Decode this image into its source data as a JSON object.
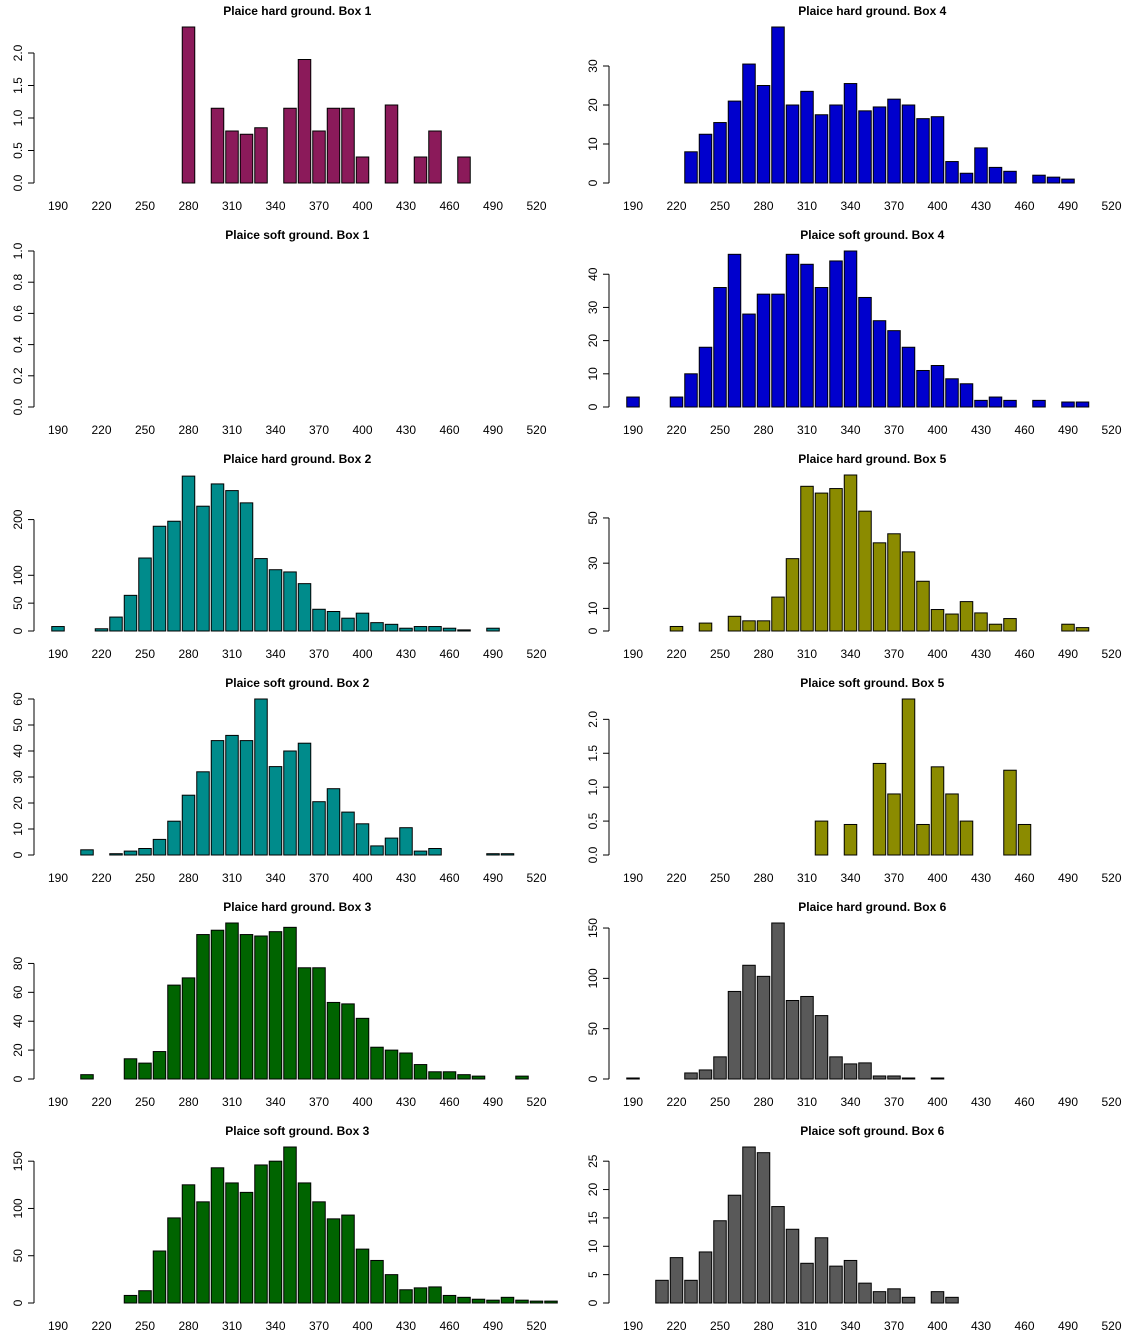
{
  "chart_data": [
    {
      "type": "bar",
      "title": "Plaice hard ground. Box 1",
      "color": "#8B1A5A",
      "xticks": [
        190,
        220,
        250,
        280,
        310,
        340,
        370,
        400,
        430,
        460,
        490,
        520
      ],
      "yticks": [
        0,
        0.5,
        1,
        1.5,
        2
      ],
      "ytick_labels": [
        "0.0",
        "0.5",
        "1.0",
        "1.5",
        "2.0"
      ],
      "ylim": [
        0,
        2.4
      ],
      "bars": [
        [
          280,
          2.4
        ],
        [
          300,
          1.15
        ],
        [
          310,
          0.8
        ],
        [
          320,
          0.75
        ],
        [
          330,
          0.85
        ],
        [
          350,
          1.15
        ],
        [
          360,
          1.9
        ],
        [
          370,
          0.8
        ],
        [
          380,
          1.15
        ],
        [
          390,
          1.15
        ],
        [
          400,
          0.4
        ],
        [
          420,
          1.2
        ],
        [
          440,
          0.4
        ],
        [
          450,
          0.8
        ],
        [
          470,
          0.4
        ]
      ]
    },
    {
      "type": "bar",
      "title": "Plaice hard ground. Box 4",
      "color": "#0000CD",
      "xticks": [
        190,
        220,
        250,
        280,
        310,
        340,
        370,
        400,
        430,
        460,
        490,
        520
      ],
      "yticks": [
        0,
        10,
        20,
        30
      ],
      "ytick_labels": [
        "0",
        "10",
        "20",
        "30"
      ],
      "ylim": [
        0,
        40
      ],
      "bars": [
        [
          230,
          8
        ],
        [
          240,
          12.5
        ],
        [
          250,
          15.5
        ],
        [
          260,
          21
        ],
        [
          270,
          30.5
        ],
        [
          280,
          25
        ],
        [
          290,
          40
        ],
        [
          300,
          20
        ],
        [
          310,
          23.5
        ],
        [
          320,
          17.5
        ],
        [
          330,
          20
        ],
        [
          340,
          25.5
        ],
        [
          350,
          18.5
        ],
        [
          360,
          19.5
        ],
        [
          370,
          21.5
        ],
        [
          380,
          20
        ],
        [
          390,
          16.5
        ],
        [
          400,
          17
        ],
        [
          410,
          5.5
        ],
        [
          420,
          2.5
        ],
        [
          430,
          9
        ],
        [
          440,
          4
        ],
        [
          450,
          3
        ],
        [
          470,
          2
        ],
        [
          480,
          1.5
        ],
        [
          490,
          1
        ]
      ]
    },
    {
      "type": "bar",
      "title": "Plaice soft ground. Box 1",
      "color": "#8B1A5A",
      "xticks": [
        190,
        220,
        250,
        280,
        310,
        340,
        370,
        400,
        430,
        460,
        490,
        520
      ],
      "yticks": [
        0,
        0.2,
        0.4,
        0.6,
        0.8,
        1
      ],
      "ytick_labels": [
        "0.0",
        "0.2",
        "0.4",
        "0.6",
        "0.8",
        "1.0"
      ],
      "ylim": [
        0,
        1
      ],
      "bars": []
    },
    {
      "type": "bar",
      "title": "Plaice soft ground. Box 4",
      "color": "#0000CD",
      "xticks": [
        190,
        220,
        250,
        280,
        310,
        340,
        370,
        400,
        430,
        460,
        490,
        520
      ],
      "yticks": [
        0,
        10,
        20,
        30,
        40
      ],
      "ytick_labels": [
        "0",
        "10",
        "20",
        "30",
        "40"
      ],
      "ylim": [
        0,
        47
      ],
      "bars": [
        [
          190,
          3
        ],
        [
          220,
          3
        ],
        [
          230,
          10
        ],
        [
          240,
          18
        ],
        [
          250,
          36
        ],
        [
          260,
          46
        ],
        [
          270,
          28
        ],
        [
          280,
          34
        ],
        [
          290,
          34
        ],
        [
          300,
          46
        ],
        [
          310,
          43
        ],
        [
          320,
          36
        ],
        [
          330,
          44
        ],
        [
          340,
          47
        ],
        [
          350,
          33
        ],
        [
          360,
          26
        ],
        [
          370,
          23
        ],
        [
          380,
          18
        ],
        [
          390,
          11
        ],
        [
          400,
          12.5
        ],
        [
          410,
          8.5
        ],
        [
          420,
          7
        ],
        [
          430,
          2
        ],
        [
          440,
          3
        ],
        [
          450,
          2
        ],
        [
          470,
          2
        ],
        [
          490,
          1.5
        ],
        [
          500,
          1.5
        ]
      ]
    },
    {
      "type": "bar",
      "title": "Plaice hard ground. Box 2",
      "color": "#008B8B",
      "xticks": [
        190,
        220,
        250,
        280,
        310,
        340,
        370,
        400,
        430,
        460,
        490,
        520
      ],
      "yticks": [
        0,
        50,
        100,
        200
      ],
      "ytick_labels": [
        "0",
        "50",
        "100",
        "200"
      ],
      "ylim": [
        0,
        280
      ],
      "bars": [
        [
          190,
          8
        ],
        [
          220,
          4
        ],
        [
          230,
          25
        ],
        [
          240,
          64
        ],
        [
          250,
          131
        ],
        [
          260,
          188
        ],
        [
          270,
          197
        ],
        [
          280,
          278
        ],
        [
          290,
          224
        ],
        [
          300,
          264
        ],
        [
          310,
          252
        ],
        [
          320,
          230
        ],
        [
          330,
          130
        ],
        [
          340,
          110
        ],
        [
          350,
          106
        ],
        [
          360,
          85
        ],
        [
          370,
          39
        ],
        [
          380,
          35
        ],
        [
          390,
          23
        ],
        [
          400,
          32
        ],
        [
          410,
          15
        ],
        [
          420,
          12
        ],
        [
          430,
          5
        ],
        [
          440,
          8
        ],
        [
          450,
          8
        ],
        [
          460,
          5
        ],
        [
          470,
          2
        ],
        [
          490,
          5
        ]
      ]
    },
    {
      "type": "bar",
      "title": "Plaice hard ground. Box 5",
      "color": "#8B8B00",
      "xticks": [
        190,
        220,
        250,
        280,
        310,
        340,
        370,
        400,
        430,
        460,
        490,
        520
      ],
      "yticks": [
        0,
        10,
        30,
        50
      ],
      "ytick_labels": [
        "0",
        "10",
        "30",
        "50"
      ],
      "ylim": [
        0,
        69
      ],
      "bars": [
        [
          220,
          2
        ],
        [
          240,
          3.5
        ],
        [
          260,
          6.5
        ],
        [
          270,
          4.5
        ],
        [
          280,
          4.5
        ],
        [
          290,
          15
        ],
        [
          300,
          32
        ],
        [
          310,
          64
        ],
        [
          320,
          61
        ],
        [
          330,
          63
        ],
        [
          340,
          69
        ],
        [
          350,
          53
        ],
        [
          360,
          39
        ],
        [
          370,
          43
        ],
        [
          380,
          35
        ],
        [
          390,
          22
        ],
        [
          400,
          9.5
        ],
        [
          410,
          7.5
        ],
        [
          420,
          13
        ],
        [
          430,
          8
        ],
        [
          440,
          3
        ],
        [
          450,
          5.5
        ],
        [
          490,
          3
        ],
        [
          500,
          1.5
        ]
      ]
    },
    {
      "type": "bar",
      "title": "Plaice soft ground. Box 2",
      "color": "#008B8B",
      "xticks": [
        190,
        220,
        250,
        280,
        310,
        340,
        370,
        400,
        430,
        460,
        490,
        520
      ],
      "yticks": [
        0,
        10,
        20,
        30,
        40,
        50,
        60
      ],
      "ytick_labels": [
        "0",
        "10",
        "20",
        "30",
        "40",
        "50",
        "60"
      ],
      "ylim": [
        0,
        60
      ],
      "bars": [
        [
          210,
          2
        ],
        [
          230,
          0.5
        ],
        [
          240,
          1.5
        ],
        [
          250,
          2.5
        ],
        [
          260,
          6
        ],
        [
          270,
          13
        ],
        [
          280,
          23
        ],
        [
          290,
          32
        ],
        [
          300,
          44
        ],
        [
          310,
          46
        ],
        [
          320,
          44
        ],
        [
          330,
          60
        ],
        [
          340,
          34
        ],
        [
          350,
          40
        ],
        [
          360,
          43
        ],
        [
          370,
          20.5
        ],
        [
          380,
          25.5
        ],
        [
          390,
          16.5
        ],
        [
          400,
          12
        ],
        [
          410,
          3.5
        ],
        [
          420,
          6.5
        ],
        [
          430,
          10.5
        ],
        [
          440,
          1.5
        ],
        [
          450,
          2.5
        ],
        [
          490,
          0.5
        ],
        [
          500,
          0.5
        ]
      ]
    },
    {
      "type": "bar",
      "title": "Plaice soft ground. Box 5",
      "color": "#8B8B00",
      "xticks": [
        190,
        220,
        250,
        280,
        310,
        340,
        370,
        400,
        430,
        460,
        490,
        520
      ],
      "yticks": [
        0,
        0.5,
        1,
        1.5,
        2
      ],
      "ytick_labels": [
        "0.0",
        "0.5",
        "1.0",
        "1.5",
        "2.0"
      ],
      "ylim": [
        0,
        2.3
      ],
      "bars": [
        [
          320,
          0.5
        ],
        [
          340,
          0.45
        ],
        [
          360,
          1.35
        ],
        [
          370,
          0.9
        ],
        [
          380,
          2.3
        ],
        [
          390,
          0.45
        ],
        [
          400,
          1.3
        ],
        [
          410,
          0.9
        ],
        [
          420,
          0.5
        ],
        [
          450,
          1.25
        ],
        [
          460,
          0.45
        ]
      ]
    },
    {
      "type": "bar",
      "title": "Plaice hard ground. Box 3",
      "color": "#006400",
      "xticks": [
        190,
        220,
        250,
        280,
        310,
        340,
        370,
        400,
        430,
        460,
        490,
        520
      ],
      "yticks": [
        0,
        20,
        40,
        60,
        80
      ],
      "ytick_labels": [
        "0",
        "20",
        "40",
        "60",
        "80"
      ],
      "ylim": [
        0,
        108
      ],
      "bars": [
        [
          210,
          3
        ],
        [
          240,
          14
        ],
        [
          250,
          11
        ],
        [
          260,
          19
        ],
        [
          270,
          65
        ],
        [
          280,
          70
        ],
        [
          290,
          100
        ],
        [
          300,
          103
        ],
        [
          310,
          108
        ],
        [
          320,
          100
        ],
        [
          330,
          99
        ],
        [
          340,
          102
        ],
        [
          350,
          105
        ],
        [
          360,
          77
        ],
        [
          370,
          77
        ],
        [
          380,
          53
        ],
        [
          390,
          52
        ],
        [
          400,
          42
        ],
        [
          410,
          22
        ],
        [
          420,
          20
        ],
        [
          430,
          18
        ],
        [
          440,
          10
        ],
        [
          450,
          5
        ],
        [
          460,
          5
        ],
        [
          470,
          3
        ],
        [
          480,
          2
        ],
        [
          510,
          2
        ]
      ]
    },
    {
      "type": "bar",
      "title": "Plaice hard ground. Box 6",
      "color": "#595959",
      "xticks": [
        190,
        220,
        250,
        280,
        310,
        340,
        370,
        400,
        430,
        460,
        490,
        520
      ],
      "yticks": [
        0,
        50,
        100,
        150
      ],
      "ytick_labels": [
        "0",
        "50",
        "100",
        "150"
      ],
      "ylim": [
        0,
        155
      ],
      "bars": [
        [
          190,
          1
        ],
        [
          230,
          6
        ],
        [
          240,
          9
        ],
        [
          250,
          22
        ],
        [
          260,
          87
        ],
        [
          270,
          113
        ],
        [
          280,
          102
        ],
        [
          290,
          155
        ],
        [
          300,
          78
        ],
        [
          310,
          82
        ],
        [
          320,
          63
        ],
        [
          330,
          22
        ],
        [
          340,
          15
        ],
        [
          350,
          16
        ],
        [
          360,
          3
        ],
        [
          370,
          3
        ],
        [
          380,
          1
        ],
        [
          400,
          1
        ]
      ]
    },
    {
      "type": "bar",
      "title": "Plaice soft ground. Box 3",
      "color": "#006400",
      "xticks": [
        190,
        220,
        250,
        280,
        310,
        340,
        370,
        400,
        430,
        460,
        490,
        520
      ],
      "yticks": [
        0,
        50,
        100,
        150
      ],
      "ytick_labels": [
        "0",
        "50",
        "100",
        "150"
      ],
      "ylim": [
        0,
        165
      ],
      "bars": [
        [
          240,
          8
        ],
        [
          250,
          13
        ],
        [
          260,
          55
        ],
        [
          270,
          90
        ],
        [
          280,
          125
        ],
        [
          290,
          107
        ],
        [
          300,
          143
        ],
        [
          310,
          127
        ],
        [
          320,
          117
        ],
        [
          330,
          146
        ],
        [
          340,
          150
        ],
        [
          350,
          165
        ],
        [
          360,
          127
        ],
        [
          370,
          107
        ],
        [
          380,
          89
        ],
        [
          390,
          93
        ],
        [
          400,
          57
        ],
        [
          410,
          45
        ],
        [
          420,
          30
        ],
        [
          430,
          14
        ],
        [
          440,
          16
        ],
        [
          450,
          17
        ],
        [
          460,
          8
        ],
        [
          470,
          6
        ],
        [
          480,
          4
        ],
        [
          490,
          3
        ],
        [
          500,
          6
        ],
        [
          510,
          3
        ],
        [
          520,
          2
        ],
        [
          530,
          2
        ]
      ]
    },
    {
      "type": "bar",
      "title": "Plaice soft ground. Box 6",
      "color": "#595959",
      "xticks": [
        190,
        220,
        250,
        280,
        310,
        340,
        370,
        400,
        430,
        460,
        490,
        520
      ],
      "yticks": [
        0,
        5,
        10,
        15,
        20,
        25
      ],
      "ytick_labels": [
        "0",
        "5",
        "10",
        "15",
        "20",
        "25"
      ],
      "ylim": [
        0,
        27.5
      ],
      "bars": [
        [
          210,
          4
        ],
        [
          220,
          8
        ],
        [
          230,
          4
        ],
        [
          240,
          9
        ],
        [
          250,
          14.5
        ],
        [
          260,
          19
        ],
        [
          270,
          27.5
        ],
        [
          280,
          26.5
        ],
        [
          290,
          17
        ],
        [
          300,
          13
        ],
        [
          310,
          7
        ],
        [
          320,
          11.5
        ],
        [
          330,
          6.5
        ],
        [
          340,
          7.5
        ],
        [
          350,
          3.5
        ],
        [
          360,
          2
        ],
        [
          370,
          2.5
        ],
        [
          380,
          1
        ],
        [
          400,
          2
        ],
        [
          410,
          1
        ]
      ]
    }
  ]
}
